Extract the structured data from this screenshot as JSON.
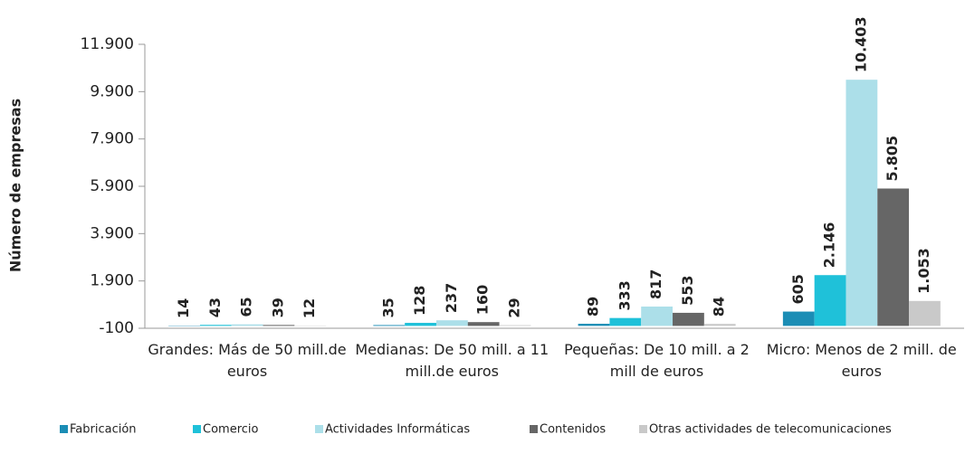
{
  "chart_data": {
    "type": "bar",
    "y_label": "Número de empresas",
    "categories": [
      "Grandes: Más de 50 mill.de euros",
      "Medianas: De 50 mill. a 11 mill.de euros",
      "Pequeñas: De 10 mill. a 2 mill de euros",
      "Micro: Menos de 2 mill. de euros"
    ],
    "series": [
      {
        "name": "Fabricación",
        "color": "#1b8db5",
        "values": [
          14,
          35,
          89,
          605
        ],
        "value_labels": [
          "14",
          "35",
          "89",
          "605"
        ]
      },
      {
        "name": "Comercio",
        "color": "#1fc1d9",
        "values": [
          43,
          128,
          333,
          2146
        ],
        "value_labels": [
          "43",
          "128",
          "333",
          "2.146"
        ]
      },
      {
        "name": "Actividades Informáticas",
        "color": "#acdfe9",
        "values": [
          65,
          237,
          817,
          10403
        ],
        "value_labels": [
          "65",
          "237",
          "817",
          "10.403"
        ]
      },
      {
        "name": "Contenidos",
        "color": "#666666",
        "values": [
          39,
          160,
          553,
          5805
        ],
        "value_labels": [
          "39",
          "160",
          "553",
          "5.805"
        ]
      },
      {
        "name": "Otras actividades de telecomunicaciones",
        "color": "#c9c9c9",
        "values": [
          12,
          29,
          84,
          1053
        ],
        "value_labels": [
          "12",
          "29",
          "84",
          "1.053"
        ]
      }
    ],
    "ylim": [
      -100,
      11900
    ],
    "yticks": [
      -100,
      {
        "value": 1900,
        "label": "1.900"
      },
      {
        "value": 3900,
        "label": "3.900"
      },
      {
        "value": 5900,
        "label": "5.900"
      },
      {
        "value": 7900,
        "label": "7.900"
      },
      {
        "value": 9900,
        "label": "9.900"
      },
      {
        "value": 11900,
        "label": "11.900"
      }
    ],
    "grid": false,
    "legend": "bottom"
  }
}
